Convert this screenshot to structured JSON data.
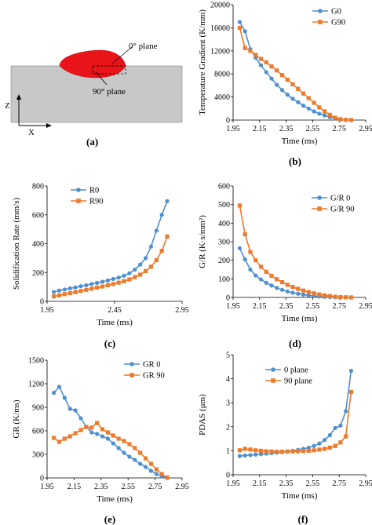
{
  "schematic": {
    "label_0": "0° plane",
    "label_90": "90° plane",
    "axis_z": "Z",
    "axis_x": "X",
    "caption": "(a)",
    "colors": {
      "pool": "#e8141a",
      "substrate": "#c8c8c8"
    }
  },
  "colors": {
    "blue": "#4e8fd0",
    "orange": "#ec7b2c"
  },
  "chart_data": [
    {
      "type": "line",
      "caption": "(b)",
      "xlabel": "Time (ms)",
      "ylabel": "Temperature Gradient (K/mm)",
      "xlim": [
        1.95,
        2.95
      ],
      "ylim": [
        0,
        20000
      ],
      "xticks": [
        1.95,
        2.15,
        2.35,
        2.55,
        2.75,
        2.95
      ],
      "yticks": [
        0,
        4000,
        8000,
        12000,
        16000,
        20000
      ],
      "xtick_labels": [
        "1.95",
        "2.15",
        "2.35",
        "2.55",
        "2.75",
        "2.95"
      ],
      "ytick_labels": [
        "0",
        "4000",
        "8000",
        "12000",
        "16000",
        "20000"
      ],
      "legend": "top-right",
      "series": [
        {
          "name": "G0",
          "color": "blue",
          "marker": "circle",
          "x": [
            2.0,
            2.04,
            2.08,
            2.12,
            2.16,
            2.2,
            2.24,
            2.28,
            2.32,
            2.36,
            2.4,
            2.44,
            2.48,
            2.52,
            2.56,
            2.6,
            2.64,
            2.68,
            2.72,
            2.76,
            2.8,
            2.84
          ],
          "y": [
            17000,
            15400,
            12300,
            10800,
            9500,
            8300,
            7200,
            6100,
            5200,
            4400,
            3700,
            3100,
            2500,
            2000,
            1500,
            1100,
            800,
            500,
            300,
            150,
            60,
            0
          ]
        },
        {
          "name": "G90",
          "color": "orange",
          "marker": "square",
          "x": [
            2.0,
            2.04,
            2.08,
            2.12,
            2.16,
            2.2,
            2.24,
            2.28,
            2.32,
            2.36,
            2.4,
            2.44,
            2.48,
            2.52,
            2.56,
            2.6,
            2.64,
            2.68,
            2.72,
            2.76,
            2.8,
            2.84
          ],
          "y": [
            16000,
            12500,
            12000,
            11300,
            10600,
            10000,
            9300,
            8600,
            7800,
            7000,
            6200,
            5400,
            4600,
            3800,
            3000,
            2200,
            1500,
            900,
            400,
            150,
            40,
            0
          ]
        }
      ]
    },
    {
      "type": "line",
      "caption": "(c)",
      "xlabel": "Time (ms)",
      "ylabel": "Solidification Rate (mm/s)",
      "xlim": [
        1.95,
        2.95
      ],
      "ylim": [
        0,
        800
      ],
      "xticks": [
        1.95,
        2.45,
        2.95
      ],
      "yticks": [
        0,
        200,
        400,
        600,
        800
      ],
      "xtick_labels": [
        "1.95",
        "2.45",
        "2.95"
      ],
      "ytick_labels": [
        "0",
        "200",
        "400",
        "600",
        "800"
      ],
      "legend": "top-left",
      "series": [
        {
          "name": "R0",
          "color": "blue",
          "marker": "circle",
          "x": [
            2.0,
            2.04,
            2.08,
            2.12,
            2.16,
            2.2,
            2.24,
            2.28,
            2.32,
            2.36,
            2.4,
            2.44,
            2.48,
            2.52,
            2.56,
            2.6,
            2.64,
            2.68,
            2.72,
            2.76,
            2.8,
            2.84
          ],
          "y": [
            65,
            75,
            82,
            90,
            97,
            105,
            112,
            120,
            128,
            136,
            145,
            155,
            165,
            178,
            195,
            220,
            255,
            300,
            380,
            490,
            600,
            695
          ]
        },
        {
          "name": "R90",
          "color": "orange",
          "marker": "square",
          "x": [
            2.0,
            2.04,
            2.08,
            2.12,
            2.16,
            2.2,
            2.24,
            2.28,
            2.32,
            2.36,
            2.4,
            2.44,
            2.48,
            2.52,
            2.56,
            2.6,
            2.64,
            2.68,
            2.72,
            2.76,
            2.8,
            2.84
          ],
          "y": [
            35,
            42,
            50,
            57,
            64,
            72,
            80,
            88,
            95,
            103,
            112,
            120,
            130,
            140,
            152,
            168,
            185,
            210,
            240,
            285,
            350,
            450
          ]
        }
      ]
    },
    {
      "type": "line",
      "caption": "(d)",
      "xlabel": "Time (ms)",
      "ylabel": "G/R (K·s/mm²)",
      "xlim": [
        1.95,
        2.95
      ],
      "ylim": [
        0,
        600
      ],
      "xticks": [
        1.95,
        2.15,
        2.35,
        2.55,
        2.75,
        2.95
      ],
      "yticks": [
        0,
        100,
        200,
        300,
        400,
        500,
        600
      ],
      "xtick_labels": [
        "1.95",
        "2.15",
        "2.35",
        "2.55",
        "2.75",
        "2.95"
      ],
      "ytick_labels": [
        "0",
        "100",
        "200",
        "300",
        "400",
        "500",
        "600"
      ],
      "legend": "top-right",
      "series": [
        {
          "name": "G/R 0",
          "color": "blue",
          "marker": "circle",
          "x": [
            2.0,
            2.04,
            2.08,
            2.12,
            2.16,
            2.2,
            2.24,
            2.28,
            2.32,
            2.36,
            2.4,
            2.44,
            2.48,
            2.52,
            2.56,
            2.6,
            2.64,
            2.68,
            2.72,
            2.76,
            2.8,
            2.84
          ],
          "y": [
            265,
            205,
            150,
            118,
            97,
            79,
            64,
            51,
            41,
            32,
            25,
            20,
            15,
            11,
            8,
            5,
            3,
            2,
            1,
            0.5,
            0.2,
            0
          ]
        },
        {
          "name": "G/R 90",
          "color": "orange",
          "marker": "square",
          "x": [
            2.0,
            2.04,
            2.08,
            2.12,
            2.16,
            2.2,
            2.24,
            2.28,
            2.32,
            2.36,
            2.4,
            2.44,
            2.48,
            2.52,
            2.56,
            2.6,
            2.64,
            2.68,
            2.72,
            2.76,
            2.8,
            2.84
          ],
          "y": [
            495,
            340,
            245,
            200,
            165,
            138,
            116,
            98,
            82,
            68,
            56,
            46,
            37,
            29,
            22,
            16,
            11,
            7,
            4,
            2,
            1,
            0
          ]
        }
      ]
    },
    {
      "type": "line",
      "caption": "(e)",
      "xlabel": "Time (ms)",
      "ylabel": "GR (K/ms)",
      "xlim": [
        1.95,
        2.95
      ],
      "ylim": [
        0,
        1500
      ],
      "xticks": [
        1.95,
        2.15,
        2.35,
        2.55,
        2.75,
        2.95
      ],
      "yticks": [
        0,
        300,
        600,
        900,
        1200,
        1500
      ],
      "xtick_labels": [
        "1.95",
        "2.15",
        "2.35",
        "2.55",
        "2.75",
        "2.95"
      ],
      "ytick_labels": [
        "0",
        "300",
        "600",
        "900",
        "1200",
        "1500"
      ],
      "legend": "top-right",
      "series": [
        {
          "name": "GR 0",
          "color": "blue",
          "marker": "circle",
          "x": [
            2.0,
            2.04,
            2.08,
            2.12,
            2.16,
            2.2,
            2.24,
            2.28,
            2.32,
            2.36,
            2.4,
            2.44,
            2.48,
            2.52,
            2.56,
            2.6,
            2.64,
            2.68,
            2.72,
            2.76,
            2.8,
            2.84
          ],
          "y": [
            1085,
            1160,
            1020,
            880,
            860,
            760,
            650,
            580,
            560,
            530,
            500,
            440,
            380,
            320,
            270,
            230,
            180,
            140,
            90,
            50,
            20,
            0
          ]
        },
        {
          "name": "GR 90",
          "color": "orange",
          "marker": "square",
          "x": [
            2.0,
            2.04,
            2.08,
            2.12,
            2.16,
            2.2,
            2.24,
            2.28,
            2.32,
            2.36,
            2.4,
            2.44,
            2.48,
            2.52,
            2.56,
            2.6,
            2.64,
            2.68,
            2.72,
            2.76,
            2.8,
            2.84
          ],
          "y": [
            510,
            460,
            500,
            530,
            570,
            610,
            650,
            640,
            700,
            620,
            580,
            540,
            500,
            470,
            430,
            380,
            320,
            250,
            180,
            110,
            50,
            5
          ]
        }
      ]
    },
    {
      "type": "line",
      "caption": "(f)",
      "xlabel": "Time (ms)",
      "ylabel": "PDAS (μm)",
      "xlim": [
        1.95,
        2.95
      ],
      "ylim": [
        0,
        5
      ],
      "xticks": [
        1.95,
        2.15,
        2.35,
        2.55,
        2.75,
        2.95
      ],
      "yticks": [
        0,
        1,
        2,
        3,
        4,
        5
      ],
      "xtick_labels": [
        "1.95",
        "2.15",
        "2.35",
        "2.55",
        "2.75",
        "2.95"
      ],
      "ytick_labels": [
        "0",
        "1",
        "2",
        "3",
        "4",
        "5"
      ],
      "legend": "top-left",
      "series": [
        {
          "name": "0 plane",
          "color": "blue",
          "marker": "circle",
          "x": [
            2.0,
            2.04,
            2.08,
            2.12,
            2.16,
            2.2,
            2.24,
            2.28,
            2.32,
            2.36,
            2.4,
            2.44,
            2.48,
            2.52,
            2.56,
            2.6,
            2.64,
            2.68,
            2.72,
            2.76,
            2.8,
            2.84
          ],
          "y": [
            0.78,
            0.8,
            0.82,
            0.84,
            0.86,
            0.88,
            0.9,
            0.92,
            0.94,
            0.97,
            1.0,
            1.04,
            1.08,
            1.13,
            1.2,
            1.3,
            1.45,
            1.65,
            1.95,
            2.05,
            2.65,
            4.33
          ]
        },
        {
          "name": "90 plane",
          "color": "orange",
          "marker": "square",
          "x": [
            2.0,
            2.04,
            2.08,
            2.12,
            2.16,
            2.2,
            2.24,
            2.28,
            2.32,
            2.36,
            2.4,
            2.44,
            2.48,
            2.52,
            2.56,
            2.6,
            2.64,
            2.68,
            2.72,
            2.76,
            2.8,
            2.84
          ],
          "y": [
            1.02,
            1.08,
            1.05,
            1.02,
            1.0,
            0.98,
            0.97,
            0.96,
            0.96,
            0.97,
            0.97,
            0.98,
            0.99,
            1.0,
            1.02,
            1.05,
            1.08,
            1.13,
            1.2,
            1.35,
            1.6,
            3.45
          ]
        }
      ]
    }
  ]
}
